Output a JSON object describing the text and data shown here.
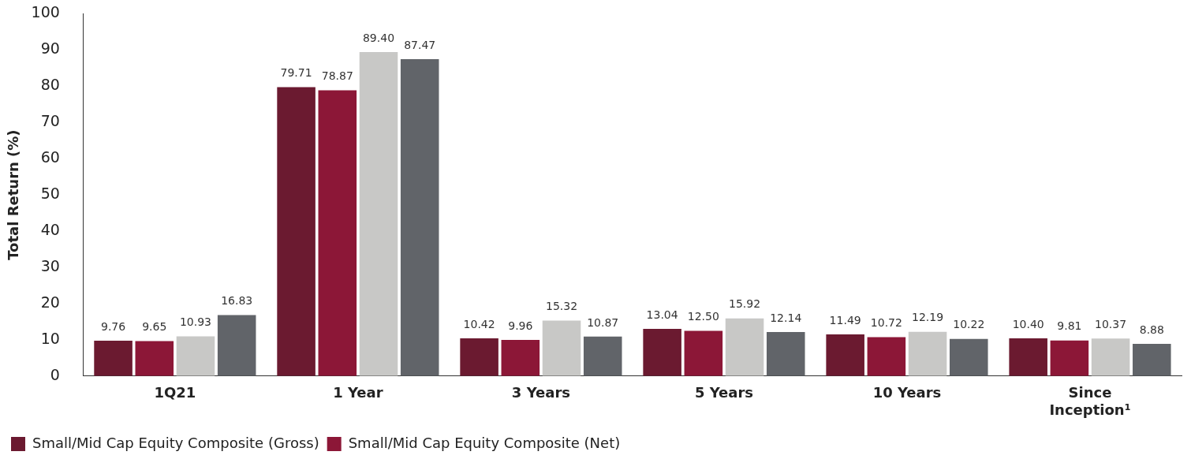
{
  "chart_data": {
    "type": "bar",
    "ylabel": "Total Return (%)",
    "categories": [
      "1Q21",
      "1 Year",
      "3 Years",
      "5 Years",
      "10 Years",
      "Since Inception¹"
    ],
    "series": [
      {
        "name": "Small/Mid Cap Equity Composite (Gross)",
        "color": "#6b1a30",
        "values": [
          9.76,
          79.71,
          10.42,
          13.04,
          11.49,
          10.4
        ],
        "value_labels": [
          "9.76",
          "79.71",
          "10.42",
          "13.04",
          "11.49",
          "10.40"
        ]
      },
      {
        "name": "Small/Mid Cap Equity Composite (Net)",
        "color": "#8c1737",
        "values": [
          9.65,
          78.87,
          9.96,
          12.5,
          10.72,
          9.81
        ],
        "value_labels": [
          "9.65",
          "78.87",
          "9.96",
          "12.50",
          "10.72",
          "9.81"
        ]
      },
      {
        "color": "#c8c8c6",
        "values": [
          10.93,
          89.4,
          15.32,
          15.92,
          12.19,
          10.37
        ],
        "value_labels": [
          "10.93",
          "89.40",
          "15.32",
          "15.92",
          "12.19",
          "10.37"
        ]
      },
      {
        "color": "#616469",
        "values": [
          16.83,
          87.47,
          10.87,
          12.14,
          10.22,
          8.88
        ],
        "value_labels": [
          "16.83",
          "87.47",
          "10.87",
          "12.14",
          "10.22",
          "8.88"
        ]
      }
    ],
    "ylim": [
      0,
      100
    ],
    "yticks": [
      0,
      10,
      20,
      30,
      40,
      50,
      60,
      70,
      80,
      90,
      100
    ],
    "grid": false,
    "legend": "bottom"
  }
}
